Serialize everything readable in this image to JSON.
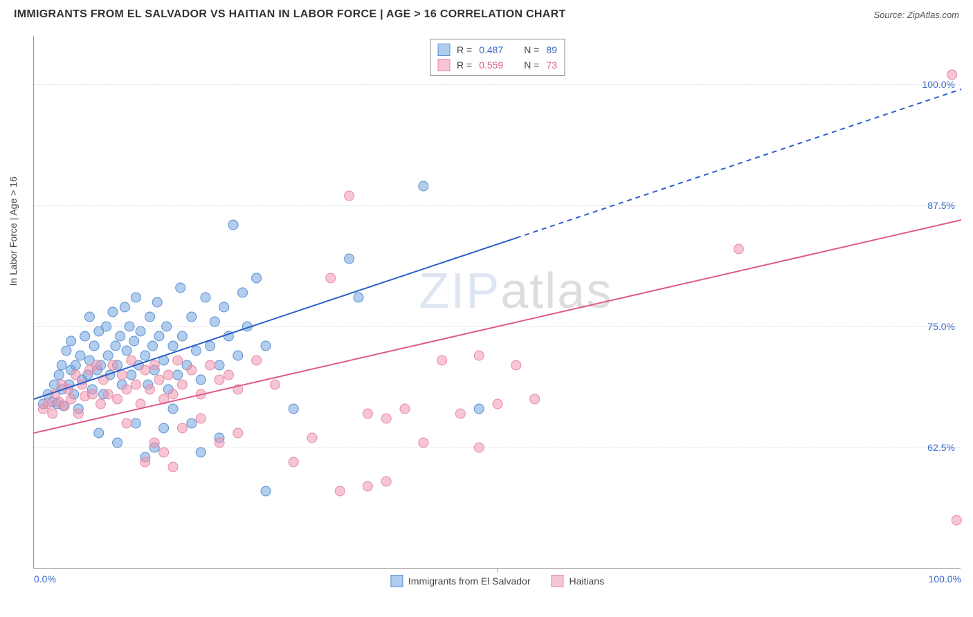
{
  "header": {
    "title": "IMMIGRANTS FROM EL SALVADOR VS HAITIAN IN LABOR FORCE | AGE > 16 CORRELATION CHART",
    "source": "Source: ZipAtlas.com"
  },
  "chart": {
    "type": "scatter",
    "y_axis_title": "In Labor Force | Age > 16",
    "background_color": "#ffffff",
    "grid_color": "#dddddd",
    "xlim": [
      0,
      100
    ],
    "ylim": [
      50,
      105
    ],
    "xticks": [
      {
        "pct": 0,
        "label": "0.0%",
        "color": "#3969c6"
      },
      {
        "pct": 100,
        "label": "100.0%",
        "color": "#3969c6"
      }
    ],
    "yticks": [
      {
        "val": 62.5,
        "label": "62.5%",
        "color": "#3969c6"
      },
      {
        "val": 75.0,
        "label": "75.0%",
        "color": "#3969c6"
      },
      {
        "val": 87.5,
        "label": "87.5%",
        "color": "#3969c6"
      },
      {
        "val": 100.0,
        "label": "100.0%",
        "color": "#3969c6"
      }
    ],
    "series": [
      {
        "name": "Immigrants from El Salvador",
        "marker_fill": "rgba(114,164,222,0.55)",
        "marker_stroke": "#5a8fd0",
        "swatch_fill": "#aecdef",
        "swatch_border": "#5a8fd0",
        "line_color": "#2a5fc7",
        "line_width": 2,
        "r_value": "0.487",
        "n_value": "89",
        "stat_color": "#3969c6",
        "trend": {
          "x1": 0,
          "y1": 67.5,
          "x2": 100,
          "y2": 99.5,
          "solid_x_end": 52
        },
        "points": [
          [
            1,
            67
          ],
          [
            1.5,
            68
          ],
          [
            2,
            67.2
          ],
          [
            2.2,
            69
          ],
          [
            2.5,
            67
          ],
          [
            2.7,
            70
          ],
          [
            3,
            68.5
          ],
          [
            3,
            71
          ],
          [
            3.2,
            66.8
          ],
          [
            3.5,
            72.5
          ],
          [
            3.8,
            69
          ],
          [
            4,
            70.5
          ],
          [
            4,
            73.5
          ],
          [
            4.3,
            68
          ],
          [
            4.5,
            71
          ],
          [
            4.8,
            66.5
          ],
          [
            5,
            72
          ],
          [
            5.2,
            69.5
          ],
          [
            5.5,
            74
          ],
          [
            5.8,
            70
          ],
          [
            6,
            71.5
          ],
          [
            6,
            76
          ],
          [
            6.3,
            68.5
          ],
          [
            6.5,
            73
          ],
          [
            6.8,
            70.5
          ],
          [
            7,
            74.5
          ],
          [
            7.2,
            71
          ],
          [
            7.5,
            68
          ],
          [
            7.8,
            75
          ],
          [
            8,
            72
          ],
          [
            8.2,
            70
          ],
          [
            8.5,
            76.5
          ],
          [
            8.8,
            73
          ],
          [
            9,
            71
          ],
          [
            9.3,
            74
          ],
          [
            9.5,
            69
          ],
          [
            9.8,
            77
          ],
          [
            10,
            72.5
          ],
          [
            10.3,
            75
          ],
          [
            10.5,
            70
          ],
          [
            10.8,
            73.5
          ],
          [
            11,
            78
          ],
          [
            11.3,
            71
          ],
          [
            11.5,
            74.5
          ],
          [
            12,
            72
          ],
          [
            12.3,
            69
          ],
          [
            12.5,
            76
          ],
          [
            12.8,
            73
          ],
          [
            13,
            70.5
          ],
          [
            13.3,
            77.5
          ],
          [
            13.5,
            74
          ],
          [
            14,
            71.5
          ],
          [
            14.3,
            75
          ],
          [
            14.5,
            68.5
          ],
          [
            15,
            73
          ],
          [
            15.5,
            70
          ],
          [
            15.8,
            79
          ],
          [
            16,
            74
          ],
          [
            16.5,
            71
          ],
          [
            17,
            76
          ],
          [
            17.5,
            72.5
          ],
          [
            18,
            69.5
          ],
          [
            18.5,
            78
          ],
          [
            19,
            73
          ],
          [
            19.5,
            75.5
          ],
          [
            20,
            71
          ],
          [
            20.5,
            77
          ],
          [
            21,
            74
          ],
          [
            21.5,
            85.5
          ],
          [
            22,
            72
          ],
          [
            22.5,
            78.5
          ],
          [
            23,
            75
          ],
          [
            24,
            80
          ],
          [
            25,
            73
          ],
          [
            7,
            64
          ],
          [
            9,
            63
          ],
          [
            12,
            61.5
          ],
          [
            14,
            64.5
          ],
          [
            18,
            62
          ],
          [
            15,
            66.5
          ],
          [
            17,
            65
          ],
          [
            20,
            63.5
          ],
          [
            11,
            65
          ],
          [
            13,
            62.5
          ],
          [
            28,
            66.5
          ],
          [
            25,
            58
          ],
          [
            34,
            82
          ],
          [
            42,
            89.5
          ],
          [
            48,
            66.5
          ],
          [
            35,
            78
          ]
        ]
      },
      {
        "name": "Haitians",
        "marker_fill": "rgba(240,150,175,0.55)",
        "marker_stroke": "#e48aa5",
        "swatch_fill": "#f6c5d4",
        "swatch_border": "#e48aa5",
        "line_color": "#e05a8a",
        "line_width": 2,
        "r_value": "0.559",
        "n_value": "73",
        "stat_color": "#e05a8a",
        "trend": {
          "x1": 0,
          "y1": 64,
          "x2": 100,
          "y2": 86,
          "solid_x_end": 100
        },
        "points": [
          [
            1,
            66.5
          ],
          [
            1.5,
            67
          ],
          [
            2,
            66
          ],
          [
            2.3,
            68
          ],
          [
            2.7,
            67.2
          ],
          [
            3,
            69
          ],
          [
            3.3,
            66.8
          ],
          [
            3.7,
            68.5
          ],
          [
            4,
            67.5
          ],
          [
            4.5,
            70
          ],
          [
            4.8,
            66
          ],
          [
            5.2,
            69
          ],
          [
            5.5,
            67.8
          ],
          [
            6,
            70.5
          ],
          [
            6.3,
            68
          ],
          [
            6.8,
            71
          ],
          [
            7.2,
            67
          ],
          [
            7.5,
            69.5
          ],
          [
            8,
            68
          ],
          [
            8.5,
            71
          ],
          [
            9,
            67.5
          ],
          [
            9.5,
            70
          ],
          [
            10,
            68.5
          ],
          [
            10.5,
            71.5
          ],
          [
            11,
            69
          ],
          [
            11.5,
            67
          ],
          [
            12,
            70.5
          ],
          [
            12.5,
            68.5
          ],
          [
            13,
            71
          ],
          [
            13.5,
            69.5
          ],
          [
            14,
            67.5
          ],
          [
            14.5,
            70
          ],
          [
            15,
            68
          ],
          [
            15.5,
            71.5
          ],
          [
            16,
            69
          ],
          [
            17,
            70.5
          ],
          [
            18,
            68
          ],
          [
            19,
            71
          ],
          [
            20,
            69.5
          ],
          [
            21,
            70
          ],
          [
            22,
            68.5
          ],
          [
            24,
            71.5
          ],
          [
            26,
            69
          ],
          [
            10,
            65
          ],
          [
            13,
            63
          ],
          [
            16,
            64.5
          ],
          [
            14,
            62
          ],
          [
            18,
            65.5
          ],
          [
            12,
            61
          ],
          [
            20,
            63
          ],
          [
            22,
            64
          ],
          [
            15,
            60.5
          ],
          [
            32,
            80
          ],
          [
            34,
            88.5
          ],
          [
            36,
            66
          ],
          [
            38,
            65.5
          ],
          [
            40,
            66.5
          ],
          [
            42,
            63
          ],
          [
            44,
            71.5
          ],
          [
            46,
            66
          ],
          [
            48,
            72
          ],
          [
            50,
            67
          ],
          [
            52,
            71
          ],
          [
            54,
            67.5
          ],
          [
            48,
            62.5
          ],
          [
            38,
            59
          ],
          [
            36,
            58.5
          ],
          [
            33,
            58
          ],
          [
            30,
            63.5
          ],
          [
            28,
            61
          ],
          [
            76,
            83
          ],
          [
            99,
            101
          ],
          [
            99.5,
            55
          ]
        ]
      }
    ],
    "legend_bottom": [
      {
        "label": "Immigrants from El Salvador",
        "fill": "#aecdef",
        "border": "#5a8fd0"
      },
      {
        "label": "Haitians",
        "fill": "#f6c5d4",
        "border": "#e48aa5"
      }
    ],
    "watermark": {
      "part1": "ZIP",
      "part2": "atlas"
    },
    "marker_radius": 7
  }
}
